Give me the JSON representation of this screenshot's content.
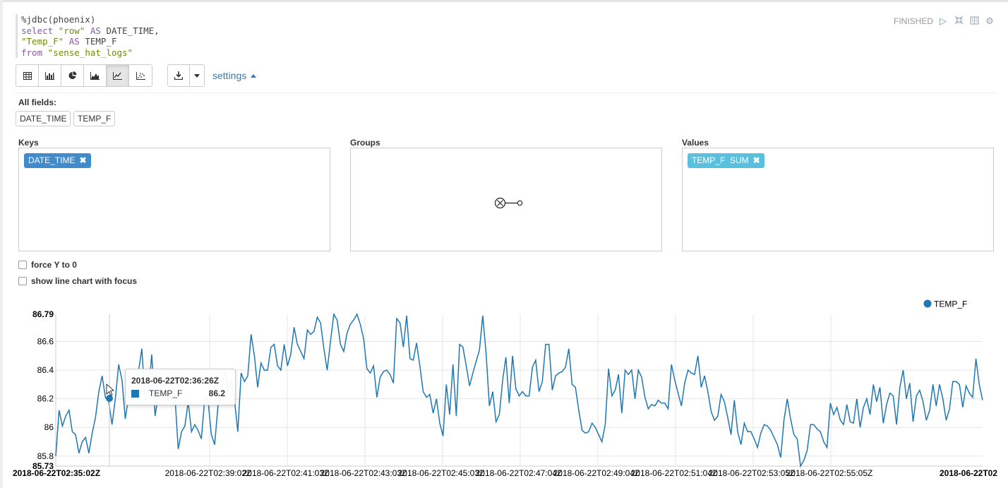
{
  "paragraph": {
    "code_lines": [
      [
        {
          "t": "%jdbc(phoenix)",
          "c": "plain"
        }
      ],
      [
        {
          "t": "select ",
          "c": "kw"
        },
        {
          "t": "\"row\"",
          "c": "str"
        },
        {
          "t": " AS ",
          "c": "kw"
        },
        {
          "t": "DATE_TIME,",
          "c": "plain"
        }
      ],
      [
        {
          "t": "\"Temp_F\"",
          "c": "str"
        },
        {
          "t": " AS ",
          "c": "kw"
        },
        {
          "t": "TEMP_F",
          "c": "plain"
        }
      ],
      [
        {
          "t": "from ",
          "c": "kw"
        },
        {
          "t": "\"sense_hat_logs\"",
          "c": "str"
        }
      ]
    ],
    "status": "FINISHED",
    "status_icons": [
      "play-icon",
      "collapse-icon",
      "book-icon",
      "gear-icon"
    ]
  },
  "toolbar": {
    "chart_types": [
      {
        "name": "table",
        "icon": "table-icon",
        "active": false
      },
      {
        "name": "bar",
        "icon": "bar-chart-icon",
        "active": false
      },
      {
        "name": "pie",
        "icon": "pie-chart-icon",
        "active": false
      },
      {
        "name": "area",
        "icon": "area-chart-icon",
        "active": false
      },
      {
        "name": "line",
        "icon": "line-chart-icon",
        "active": true
      },
      {
        "name": "scatter",
        "icon": "scatter-chart-icon",
        "active": false
      }
    ],
    "download_icon": "download-icon",
    "settings_label": "settings"
  },
  "settings": {
    "all_fields_label": "All fields:",
    "fields": [
      "DATE_TIME",
      "TEMP_F"
    ],
    "keys_label": "Keys",
    "groups_label": "Groups",
    "values_label": "Values",
    "keys": [
      "DATE_TIME"
    ],
    "values": [
      "TEMP_F  SUM"
    ],
    "force_y0_label": "force Y to 0",
    "focus_label": "show line chart with focus"
  },
  "colors": {
    "series": "#1f77b4",
    "key_tag": "#428bca",
    "value_tag": "#5bc0de",
    "link": "#337ab7"
  },
  "tooltip": {
    "title": "2018-06-22T02:36:26Z",
    "series": "TEMP_F",
    "value": "86.2"
  },
  "chart_data": {
    "type": "line",
    "legend": [
      "TEMP_F"
    ],
    "legend_position": "top-right",
    "grid": true,
    "ylim": [
      85.73,
      86.79
    ],
    "y_ticks": [
      "86.79",
      "86.6",
      "86.4",
      "86.2",
      "86",
      "85.8",
      "85.73"
    ],
    "x_ticks": [
      "2018-06-22T02:35:02Z",
      "2018-06-22T02:39:02Z",
      "2018-06-22T02:41:03Z",
      "2018-06-22T02:43:03Z",
      "2018-06-22T02:45:03Z",
      "2018-06-22T02:47:04Z",
      "2018-06-22T02:49:04Z",
      "2018-06-22T02:51:04Z",
      "2018-06-22T02:53:05Z",
      "2018-06-22T02:55:05Z",
      "2018-06-22T02"
    ],
    "series": [
      {
        "name": "TEMP_F",
        "values": [
          85.8,
          86.12,
          86.01,
          86.08,
          86.12,
          85.97,
          85.95,
          85.82,
          85.9,
          85.93,
          85.82,
          85.96,
          86.07,
          86.25,
          86.36,
          86.21,
          86.18,
          86.02,
          86.2,
          86.44,
          86.33,
          86.06,
          86.22,
          86.25,
          86.29,
          86.39,
          86.55,
          86.18,
          86.25,
          86.51,
          86.08,
          86.23,
          86.3,
          86.28,
          86.19,
          86.25,
          86.22,
          85.85,
          85.97,
          86.01,
          86.18,
          85.97,
          86.02,
          85.98,
          85.92,
          86.2,
          86.19,
          85.95,
          85.88,
          86.15,
          86.22,
          86.4,
          86.26,
          86.32,
          86.19,
          85.97,
          86.38,
          86.32,
          86.36,
          86.65,
          86.5,
          86.28,
          86.45,
          86.4,
          86.4,
          86.56,
          86.58,
          86.43,
          86.4,
          86.58,
          86.43,
          86.51,
          86.7,
          86.58,
          86.53,
          86.48,
          86.68,
          86.65,
          86.67,
          86.77,
          86.73,
          86.55,
          86.4,
          86.6,
          86.79,
          86.75,
          86.58,
          86.53,
          86.66,
          86.72,
          86.75,
          86.79,
          86.72,
          86.62,
          86.41,
          86.38,
          86.43,
          86.21,
          86.35,
          86.39,
          86.4,
          86.37,
          86.31,
          86.76,
          86.73,
          86.56,
          86.78,
          86.48,
          86.47,
          86.59,
          86.43,
          86.25,
          86.21,
          86.23,
          86.1,
          86.2,
          86.03,
          85.94,
          86.3,
          86.09,
          86.44,
          86.08,
          86.58,
          86.56,
          86.43,
          86.29,
          86.38,
          86.46,
          86.54,
          86.78,
          86.52,
          86.15,
          86.25,
          86.04,
          86.09,
          86.33,
          86.49,
          86.17,
          86.5,
          86.27,
          86.22,
          86.25,
          86.22,
          86.22,
          86.42,
          86.47,
          86.25,
          86.32,
          86.58,
          86.58,
          86.26,
          86.36,
          86.38,
          86.39,
          86.42,
          86.55,
          86.3,
          86.28,
          86.12,
          85.98,
          85.96,
          85.97,
          86.03,
          86.0,
          85.95,
          85.9,
          86.02,
          86.41,
          86.22,
          86.26,
          86.37,
          86.1,
          86.4,
          86.37,
          86.4,
          86.2,
          86.4,
          86.35,
          86.21,
          86.13,
          86.16,
          86.15,
          86.19,
          86.17,
          86.17,
          86.13,
          86.44,
          86.33,
          86.24,
          86.15,
          86.31,
          86.4,
          86.38,
          86.37,
          86.5,
          86.28,
          86.36,
          86.25,
          86.11,
          86.05,
          86.08,
          86.23,
          86.18,
          86.07,
          85.95,
          86.19,
          85.97,
          85.88,
          86.03,
          85.97,
          85.97,
          85.92,
          85.86,
          85.96,
          86.02,
          86.01,
          85.98,
          85.93,
          85.88,
          85.79,
          86.05,
          86.2,
          86.06,
          85.95,
          85.92,
          85.73,
          85.77,
          85.84,
          86.02,
          86.02,
          85.99,
          85.97,
          85.9,
          85.86,
          86.17,
          86.09,
          86.14,
          86.05,
          86.02,
          86.16,
          86.04,
          86.03,
          86.2,
          86.0,
          86.14,
          86.2,
          86.09,
          86.3,
          86.18,
          86.28,
          86.03,
          86.16,
          86.24,
          86.22,
          86.02,
          86.28,
          86.4,
          86.2,
          86.31,
          86.04,
          86.22,
          86.26,
          86.18,
          86.05,
          86.12,
          86.3,
          86.15,
          86.3,
          86.2,
          86.05,
          86.13,
          86.32,
          86.32,
          86.3,
          86.14,
          86.29,
          86.24,
          86.21,
          86.48,
          86.3,
          86.19
        ]
      }
    ]
  }
}
